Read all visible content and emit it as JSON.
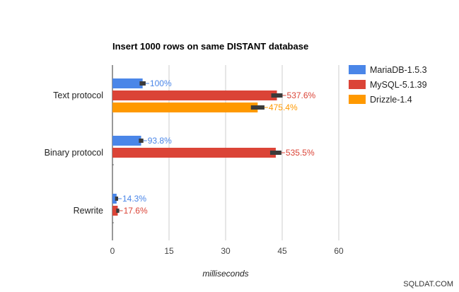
{
  "chart_data": {
    "type": "bar",
    "orientation": "horizontal",
    "title": "Insert 1000 rows on same DISTANT database",
    "xlabel": "milliseconds",
    "ylabel": "",
    "xlim": [
      0,
      60
    ],
    "xticks": [
      "0",
      "15",
      "30",
      "45",
      "60"
    ],
    "grid": true,
    "legend_position": "right",
    "categories": [
      "Text protocol",
      "Binary protocol",
      "Rewrite"
    ],
    "series": [
      {
        "name": "MariaDB-1.5.3",
        "color": "#4a86e8",
        "values": [
          8.0,
          7.6,
          1.1
        ],
        "labels": [
          "100%",
          "93.8%",
          "14.3%"
        ],
        "errors": [
          0.8,
          0.6,
          0.4
        ]
      },
      {
        "name": "MySQL-5.1.39",
        "color": "#db4437",
        "values": [
          43.6,
          43.3,
          1.4
        ],
        "labels": [
          "537.6%",
          "535.5%",
          "17.6%"
        ],
        "errors": [
          1.5,
          1.5,
          0.4
        ]
      },
      {
        "name": "Drizzle-1.4",
        "color": "#ff9900",
        "values": [
          38.5,
          0,
          0
        ],
        "labels": [
          "475.4%",
          "",
          ""
        ],
        "errors": [
          1.8,
          0,
          0
        ]
      }
    ]
  },
  "watermark": "SQLDAT.COM"
}
